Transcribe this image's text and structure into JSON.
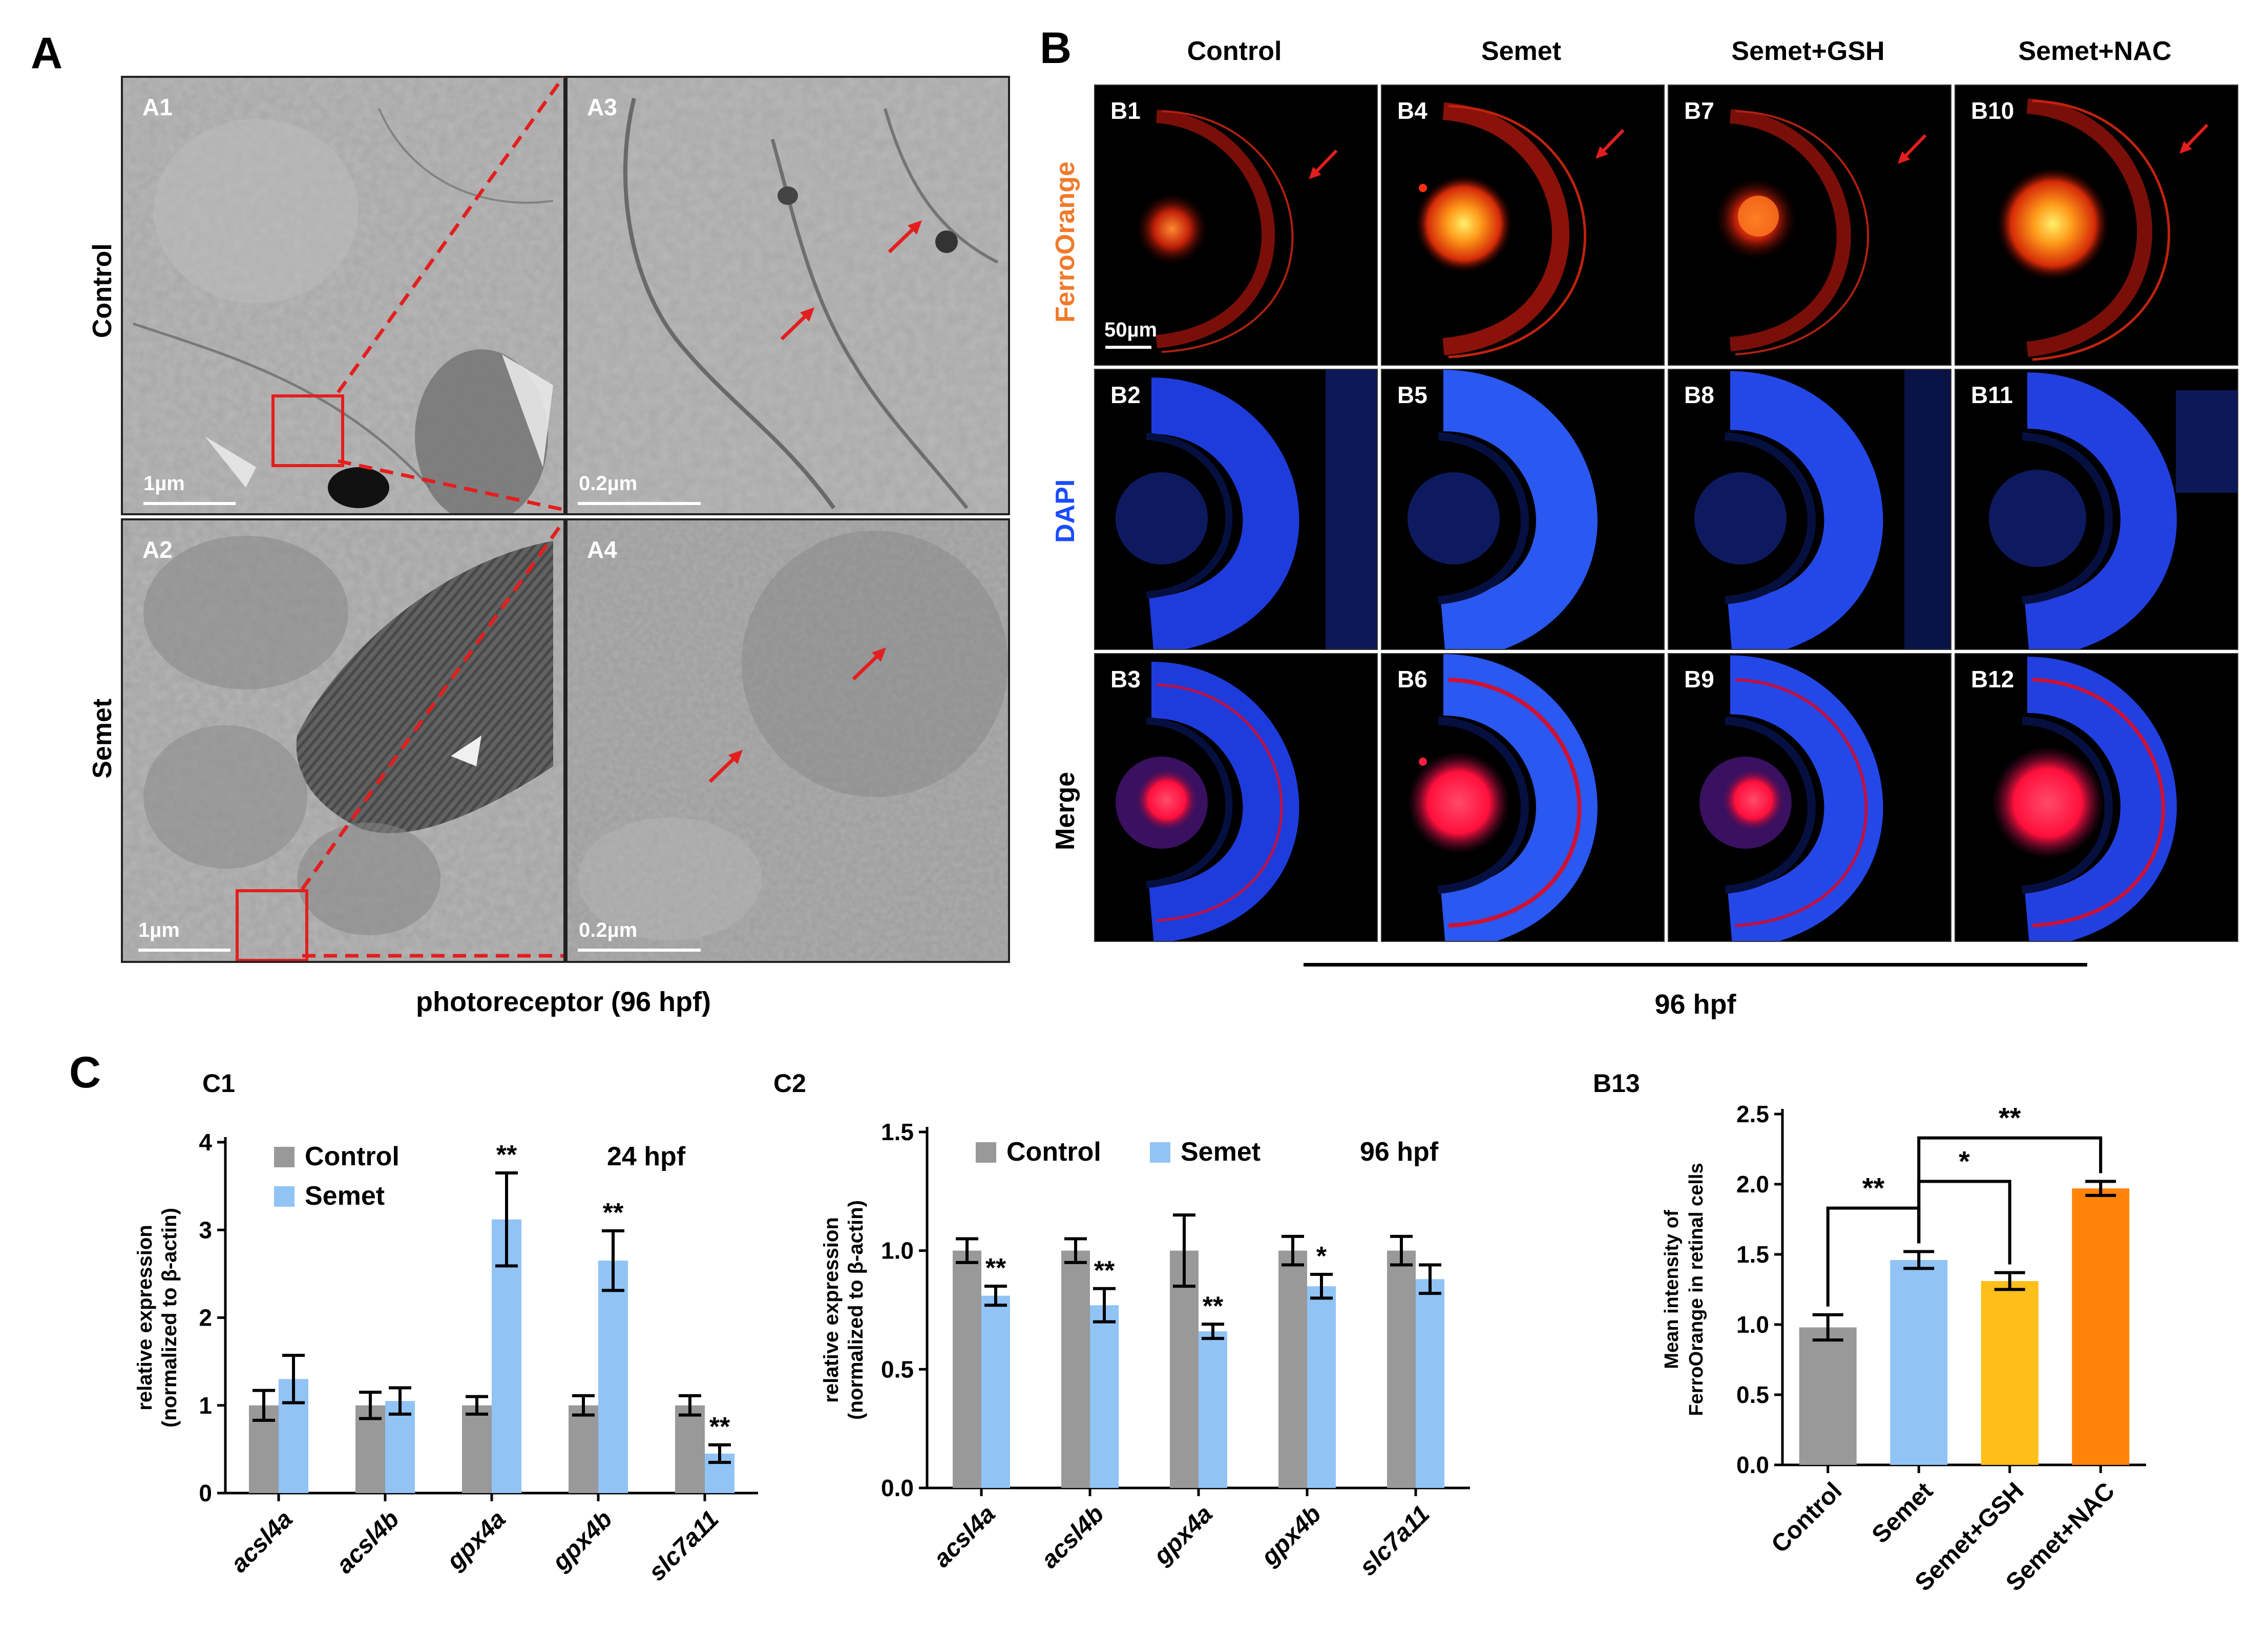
{
  "panel_letters": {
    "a": "A",
    "b": "B",
    "c": "C"
  },
  "panel_a": {
    "row_labels": [
      "Control",
      "Semet"
    ],
    "sub_labels": {
      "a1": "A1",
      "a2": "A2",
      "a3": "A3",
      "a4": "A4"
    },
    "scale_big": "1µm",
    "scale_small": "0.2µm",
    "caption": "photoreceptor (96 hpf)"
  },
  "panel_b": {
    "col_labels": [
      "Control",
      "Semet",
      "Semet+GSH",
      "Semet+NAC"
    ],
    "row_labels": [
      "FerroOrange",
      "DAPI",
      "Merge"
    ],
    "row_label_colors": [
      "#f07a2a",
      "#1a4cff",
      "#000000"
    ],
    "sub_labels": [
      "B1",
      "B4",
      "B7",
      "B10",
      "B2",
      "B5",
      "B8",
      "B11",
      "B3",
      "B6",
      "B9",
      "B12"
    ],
    "scale": "50µm",
    "caption": "96 hpf"
  },
  "chart_data": [
    {
      "id": "C1",
      "type": "bar",
      "title": "C1",
      "annotation": "24 hpf",
      "ylabel": "relative expression (normalized to β-actin)",
      "ylabel_lines": [
        "relative expression",
        "(normalized to β-actin)"
      ],
      "ylim": [
        0,
        4
      ],
      "yticks": [
        0,
        1,
        2,
        3,
        4
      ],
      "categories": [
        "acsl4a",
        "acsl4b",
        "gpx4a",
        "gpx4b",
        "slc7a11"
      ],
      "series": [
        {
          "name": "Control",
          "color": "#999999",
          "values": [
            1.0,
            1.0,
            1.0,
            1.0,
            1.0
          ],
          "errors": [
            0.17,
            0.15,
            0.1,
            0.11,
            0.11
          ],
          "sig": [
            "",
            "",
            "",
            "",
            ""
          ]
        },
        {
          "name": "Semet",
          "color": "#91c3f5",
          "values": [
            1.3,
            1.05,
            3.12,
            2.65,
            0.45
          ],
          "errors": [
            0.27,
            0.15,
            0.53,
            0.34,
            0.1
          ],
          "sig": [
            "",
            "",
            "**",
            "**",
            "**"
          ]
        }
      ],
      "legend": "top-left"
    },
    {
      "id": "C2",
      "type": "bar",
      "title": "C2",
      "annotation": "96 hpf",
      "ylabel": "relative expression (normalized to β-actin)",
      "ylabel_lines": [
        "relative expression",
        "(normalized to β-actin)"
      ],
      "ylim": [
        0,
        1.5
      ],
      "yticks": [
        "0.0",
        "0.5",
        "1.0",
        "1.5"
      ],
      "categories": [
        "acsl4a",
        "acsl4b",
        "gpx4a",
        "gpx4b",
        "slc7a11"
      ],
      "series": [
        {
          "name": "Control",
          "color": "#999999",
          "values": [
            1.0,
            1.0,
            1.0,
            1.0,
            1.0
          ],
          "errors": [
            0.05,
            0.05,
            0.15,
            0.06,
            0.06
          ],
          "sig": [
            "",
            "",
            "",
            "",
            ""
          ]
        },
        {
          "name": "Semet",
          "color": "#91c3f5",
          "values": [
            0.81,
            0.77,
            0.66,
            0.85,
            0.88
          ],
          "errors": [
            0.04,
            0.07,
            0.03,
            0.05,
            0.06
          ],
          "sig": [
            "**",
            "**",
            "**",
            "*",
            ""
          ]
        }
      ],
      "legend": "top"
    },
    {
      "id": "B13",
      "type": "bar",
      "title": "B13",
      "ylabel": "Mean intensity of FerroOrange in retinal cells",
      "ylabel_lines": [
        "Mean intensity of",
        "FerroOrange in retinal cells"
      ],
      "ylim": [
        0,
        2.5
      ],
      "yticks": [
        "0.0",
        "0.5",
        "1.0",
        "1.5",
        "2.0",
        "2.5"
      ],
      "categories": [
        "Control",
        "Semet",
        "Semet+GSH",
        "Semet+NAC"
      ],
      "values": [
        0.98,
        1.46,
        1.31,
        1.97
      ],
      "errors": [
        0.09,
        0.06,
        0.06,
        0.05
      ],
      "colors": [
        "#999999",
        "#91c3f5",
        "#ffbf1a",
        "#ff8409"
      ],
      "brackets": [
        {
          "from": 0,
          "to": 1,
          "label": "**"
        },
        {
          "from": 1,
          "to": 2,
          "label": "*"
        },
        {
          "from": 1,
          "to": 3,
          "label": "**"
        }
      ]
    }
  ]
}
